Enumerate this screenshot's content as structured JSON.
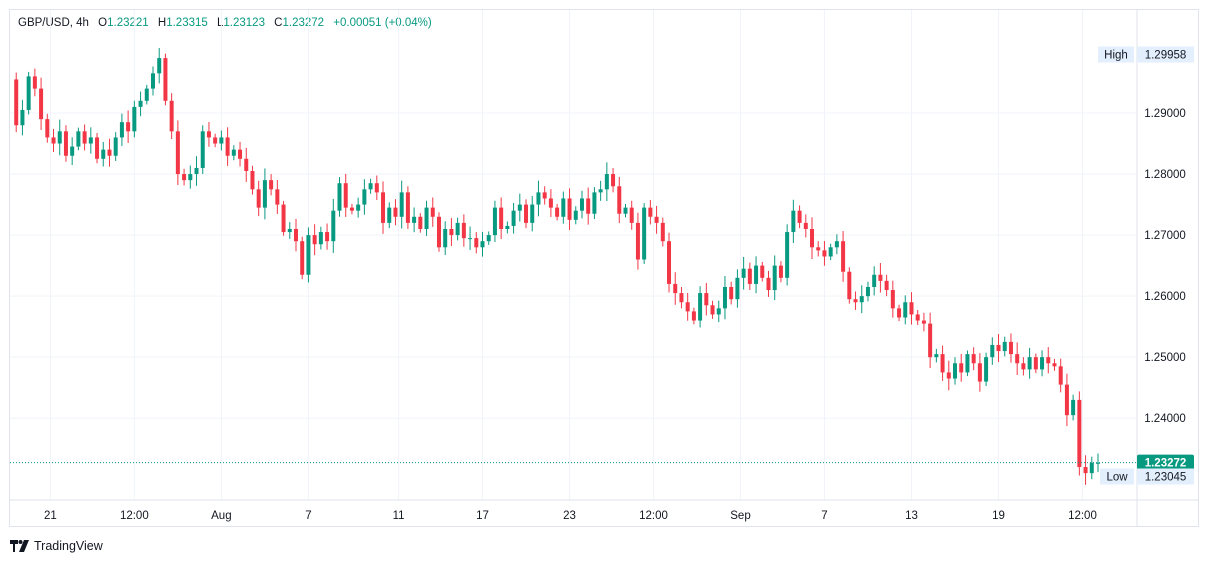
{
  "legend": {
    "symbol": "GBP/USD, 4h",
    "open_label": "O",
    "open": "1.23221",
    "high_label": "H",
    "high": "1.23315",
    "low_label": "L",
    "low": "1.23123",
    "close_label": "C",
    "close": "1.23272",
    "change": "+0.00051 (+0.04%)"
  },
  "colors": {
    "up": "#089981",
    "down": "#f23645",
    "grid": "#f0f3fa",
    "axis_text": "#131722",
    "badge_bg": "#e3effd",
    "price_line": "#089981"
  },
  "footer": {
    "brand": "TradingView"
  },
  "chart_data": {
    "type": "candlestick",
    "title": "",
    "xlabel": "",
    "ylabel": "",
    "ylim": [
      1.2266,
      1.3036
    ],
    "y_ticks": [
      "1.29000",
      "1.28000",
      "1.27000",
      "1.26000",
      "1.25000",
      "1.24000"
    ],
    "x_ticks": [
      "21",
      "12:00",
      "Aug",
      "7",
      "11",
      "17",
      "23",
      "12:00",
      "Sep",
      "7",
      "13",
      "19",
      "12:00"
    ],
    "x_tick_slots": [
      6.5,
      20,
      34,
      48,
      62.5,
      76,
      90,
      103.5,
      117.5,
      131,
      145,
      159,
      172.5
    ],
    "slot_count": 176,
    "grid": true,
    "high_marker": {
      "label": "High",
      "value": "1.29958"
    },
    "low_marker": {
      "label": "Low",
      "value": "1.23045"
    },
    "last_price": "1.23272",
    "closes": [
      1.2955,
      1.288,
      1.2905,
      1.296,
      1.294,
      1.289,
      1.286,
      1.285,
      1.287,
      1.283,
      1.2845,
      1.287,
      1.285,
      1.286,
      1.2825,
      1.284,
      1.283,
      1.286,
      1.2885,
      1.287,
      1.291,
      1.292,
      1.294,
      1.2965,
      1.299,
      1.292,
      1.287,
      1.28,
      1.279,
      1.28,
      1.281,
      1.287,
      1.286,
      1.285,
      1.286,
      1.283,
      1.284,
      1.2825,
      1.2805,
      1.2775,
      1.2745,
      1.279,
      1.2775,
      1.275,
      1.2705,
      1.271,
      1.269,
      1.2635,
      1.27,
      1.2685,
      1.2705,
      1.269,
      1.274,
      1.2785,
      1.2745,
      1.274,
      1.275,
      1.2775,
      1.2785,
      1.277,
      1.272,
      1.2745,
      1.273,
      1.277,
      1.272,
      1.273,
      1.271,
      1.2745,
      1.273,
      1.268,
      1.271,
      1.27,
      1.272,
      1.2695,
      1.2695,
      1.268,
      1.269,
      1.27,
      1.2745,
      1.271,
      1.2715,
      1.274,
      1.275,
      1.272,
      1.275,
      1.277,
      1.276,
      1.2745,
      1.273,
      1.276,
      1.2725,
      1.274,
      1.276,
      1.2735,
      1.277,
      1.2775,
      1.28,
      1.278,
      1.2735,
      1.2745,
      1.272,
      1.266,
      1.2745,
      1.273,
      1.272,
      1.269,
      1.262,
      1.2605,
      1.259,
      1.2575,
      1.256,
      1.2605,
      1.2585,
      1.257,
      1.258,
      1.2615,
      1.2595,
      1.263,
      1.2645,
      1.262,
      1.265,
      1.263,
      1.261,
      1.265,
      1.263,
      1.2705,
      1.274,
      1.272,
      1.271,
      1.268,
      1.2675,
      1.2665,
      1.268,
      1.269,
      1.264,
      1.2595,
      1.259,
      1.26,
      1.2615,
      1.2635,
      1.2625,
      1.261,
      1.258,
      1.2565,
      1.259,
      1.257,
      1.256,
      1.2555,
      1.25,
      1.2505,
      1.2475,
      1.2465,
      1.249,
      1.2475,
      1.2505,
      1.249,
      1.246,
      1.25,
      1.252,
      1.251,
      1.2525,
      1.2505,
      1.249,
      1.248,
      1.25,
      1.248,
      1.25,
      1.249,
      1.2485,
      1.2455,
      1.2405,
      1.243,
      1.232,
      1.231,
      1.2327,
      1.2327
    ]
  }
}
